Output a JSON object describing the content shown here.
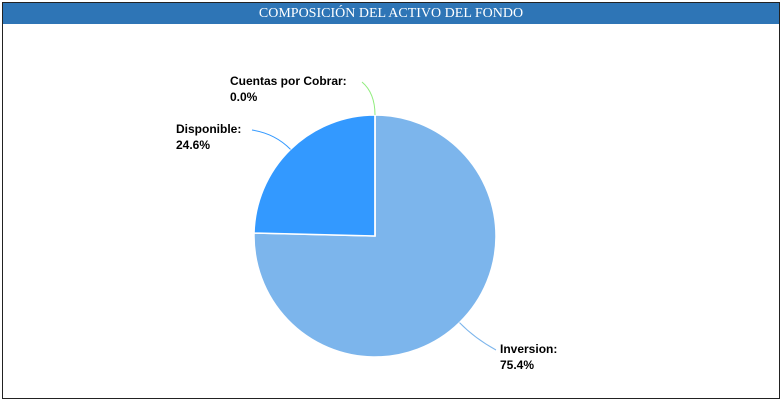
{
  "chart_data": {
    "type": "pie",
    "title": "COMPOSICIÓN DEL ACTIVO DEL FONDO",
    "categories": [
      "Inversion:",
      "Disponible:",
      "Cuentas por Cobrar:"
    ],
    "values": [
      75.4,
      24.6,
      0.0
    ],
    "value_labels": [
      "75.4%",
      "24.6%",
      "0.0%"
    ],
    "colors": [
      "#7cb5ec",
      "#3399ff",
      "#90ed7d"
    ]
  }
}
